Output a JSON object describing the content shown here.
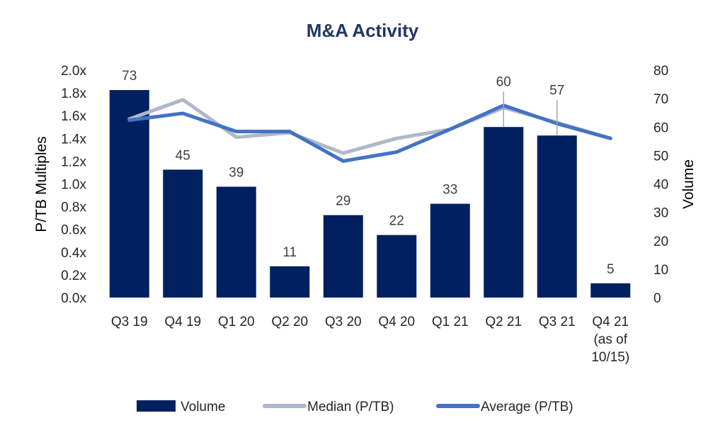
{
  "chart_data": {
    "type": "bar",
    "title": "M&A Activity",
    "categories": [
      [
        "Q3 19"
      ],
      [
        "Q4 19"
      ],
      [
        "Q1 20"
      ],
      [
        "Q2 20"
      ],
      [
        "Q3 20"
      ],
      [
        "Q4 20"
      ],
      [
        "Q1 21"
      ],
      [
        "Q2 21"
      ],
      [
        "Q3 21"
      ],
      [
        "Q4 21",
        "(as of",
        "10/15)"
      ]
    ],
    "y_left": {
      "label": "P/TB Multiples",
      "range": [
        0,
        2.0
      ],
      "ticks": [
        "0.0x",
        "0.2x",
        "0.4x",
        "0.6x",
        "0.8x",
        "1.0x",
        "1.2x",
        "1.4x",
        "1.6x",
        "1.8x",
        "2.0x"
      ]
    },
    "y_right": {
      "label": "Volume",
      "range": [
        0,
        80
      ],
      "ticks": [
        "0",
        "10",
        "20",
        "30",
        "40",
        "50",
        "60",
        "70",
        "80"
      ]
    },
    "series": [
      {
        "name": "Volume",
        "type": "bar",
        "axis": "right",
        "color": "#002060",
        "values": [
          73,
          45,
          39,
          11,
          29,
          22,
          33,
          60,
          57,
          5
        ],
        "labels": [
          "73",
          "45",
          "39",
          "11",
          "29",
          "22",
          "33",
          "60",
          "57",
          "5"
        ]
      },
      {
        "name": "Median (P/TB)",
        "type": "line",
        "axis": "left",
        "color": "#adb9ca",
        "values": [
          1.57,
          1.74,
          1.41,
          1.45,
          1.27,
          1.4,
          1.48,
          1.67,
          1.54,
          1.4
        ]
      },
      {
        "name": "Average (P/TB)",
        "type": "line",
        "axis": "left",
        "color": "#4472c4",
        "values": [
          1.56,
          1.62,
          1.46,
          1.46,
          1.2,
          1.28,
          1.48,
          1.69,
          1.53,
          1.4
        ]
      }
    ],
    "legend": {
      "position": "bottom"
    },
    "grid": false
  }
}
